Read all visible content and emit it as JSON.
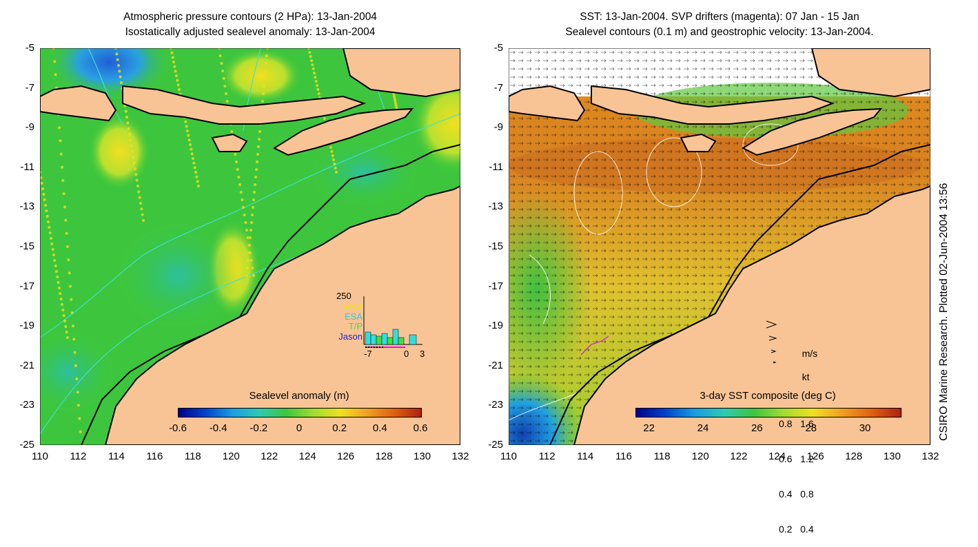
{
  "left_panel": {
    "title_line1": "Atmospheric pressure contours (2 HPa): 13-Jan-2004",
    "title_line2": "Isostatically adjusted sealevel anomaly: 13-Jan-2004",
    "colorbar_title": "Sealevel anomaly (m)",
    "colorbar_ticks": [
      "-0.6",
      "-0.4",
      "-0.2",
      "0",
      "0.2",
      "0.4",
      "0.6"
    ],
    "inset": {
      "ymax_label": "250",
      "legend": [
        "ERS",
        "ESA",
        "T/P",
        "Jason"
      ],
      "legend_colors": [
        "#e8e800",
        "#33cccc",
        "#44dd44",
        "#2222cc"
      ],
      "x_ticks": [
        "-7",
        "0",
        "3"
      ]
    }
  },
  "right_panel": {
    "title_line1": "SST: 13-Jan-2004. SVP drifters (magenta): 07 Jan - 15 Jan",
    "title_line2": "Sealevel contours (0.1 m) and geostrophic velocity: 13-Jan-2004.",
    "colorbar_title": "3-day SST composite (deg C)",
    "colorbar_ticks": [
      "22",
      "24",
      "26",
      "28",
      "30"
    ],
    "velocity_legend": {
      "header": [
        "m/s",
        "kt"
      ],
      "rows": [
        [
          "0.8",
          "1.6"
        ],
        [
          "0.6",
          "1.2"
        ],
        [
          "0.4",
          "0.8"
        ],
        [
          "0.2",
          "0.4"
        ]
      ]
    }
  },
  "axes": {
    "y_ticks": [
      "-5",
      "-7",
      "-9",
      "-11",
      "-13",
      "-15",
      "-17",
      "-19",
      "-21",
      "-23",
      "-25"
    ],
    "x_ticks": [
      "110",
      "112",
      "114",
      "116",
      "118",
      "120",
      "122",
      "124",
      "126",
      "128",
      "130",
      "132"
    ]
  },
  "credit": "CSIRO Marine Research. Plotted 02-Jun-2004 13:56",
  "colors": {
    "land": "#f8c496",
    "ocean_green": "#3dc63d",
    "sst_orange": "#e08a20",
    "contour_cyan": "#40e0d0"
  }
}
